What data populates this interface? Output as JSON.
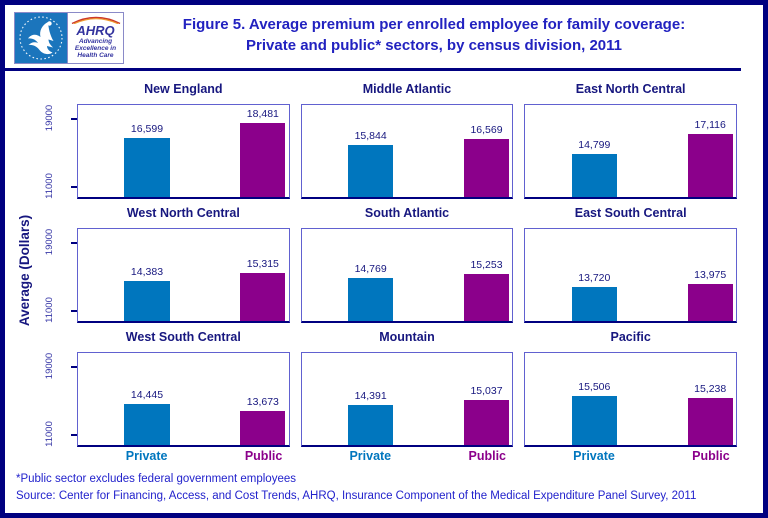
{
  "header": {
    "logo": {
      "ahrq_word": "AHRQ",
      "tagline_line1": "Advancing",
      "tagline_line2": "Excellence in",
      "tagline_line3": "Health Care"
    },
    "title_line1": "Figure 5. Average premium per enrolled employee for family coverage:",
    "title_line2": "Private and public* sectors, by census division, 2011"
  },
  "chart_data": {
    "type": "bar",
    "title": "Figure 5. Average premium per enrolled employee for family coverage: Private and public* sectors, by census division, 2011",
    "categories": [
      "Private",
      "Public"
    ],
    "ylabel": "Average (Dollars)",
    "yticks": [
      11000,
      19000
    ],
    "ytick_labels": [
      "11000",
      "19000"
    ],
    "axis_render_range": [
      9600,
      20600
    ],
    "legend_position": "none",
    "grid": "off",
    "panels": [
      {
        "title": "New England",
        "values": [
          16599,
          18481
        ],
        "labels": [
          "16,599",
          "18,481"
        ]
      },
      {
        "title": "Middle Atlantic",
        "values": [
          15844,
          16569
        ],
        "labels": [
          "15,844",
          "16,569"
        ]
      },
      {
        "title": "East North Central",
        "values": [
          14799,
          17116
        ],
        "labels": [
          "14,799",
          "17,116"
        ]
      },
      {
        "title": "West North Central",
        "values": [
          14383,
          15315
        ],
        "labels": [
          "14,383",
          "15,315"
        ]
      },
      {
        "title": "South Atlantic",
        "values": [
          14769,
          15253
        ],
        "labels": [
          "14,769",
          "15,253"
        ]
      },
      {
        "title": "East South Central",
        "values": [
          13720,
          13975
        ],
        "labels": [
          "13,720",
          "13,975"
        ]
      },
      {
        "title": "West South Central",
        "values": [
          14445,
          13673
        ],
        "labels": [
          "14,445",
          "13,673"
        ]
      },
      {
        "title": "Mountain",
        "values": [
          14391,
          15037
        ],
        "labels": [
          "14,391",
          "15,037"
        ]
      },
      {
        "title": "Pacific",
        "values": [
          15506,
          15238
        ],
        "labels": [
          "15,506",
          "15,238"
        ]
      }
    ]
  },
  "colors": {
    "private_bar": "#0076BE",
    "public_bar": "#8B008B",
    "navy_border": "#000080",
    "title_blue": "#2222C0",
    "label_navy": "#17177F",
    "footer_blue": "#2222CC",
    "panel_border": "#6161D0",
    "hhs_seal_blue": "#1B75BC"
  },
  "footer": {
    "footnote": "*Public sector excludes federal government employees",
    "source": "Source: Center for Financing, Access, and Cost Trends, AHRQ, Insurance Component of the Medical Expenditure Panel Survey, 2011"
  }
}
